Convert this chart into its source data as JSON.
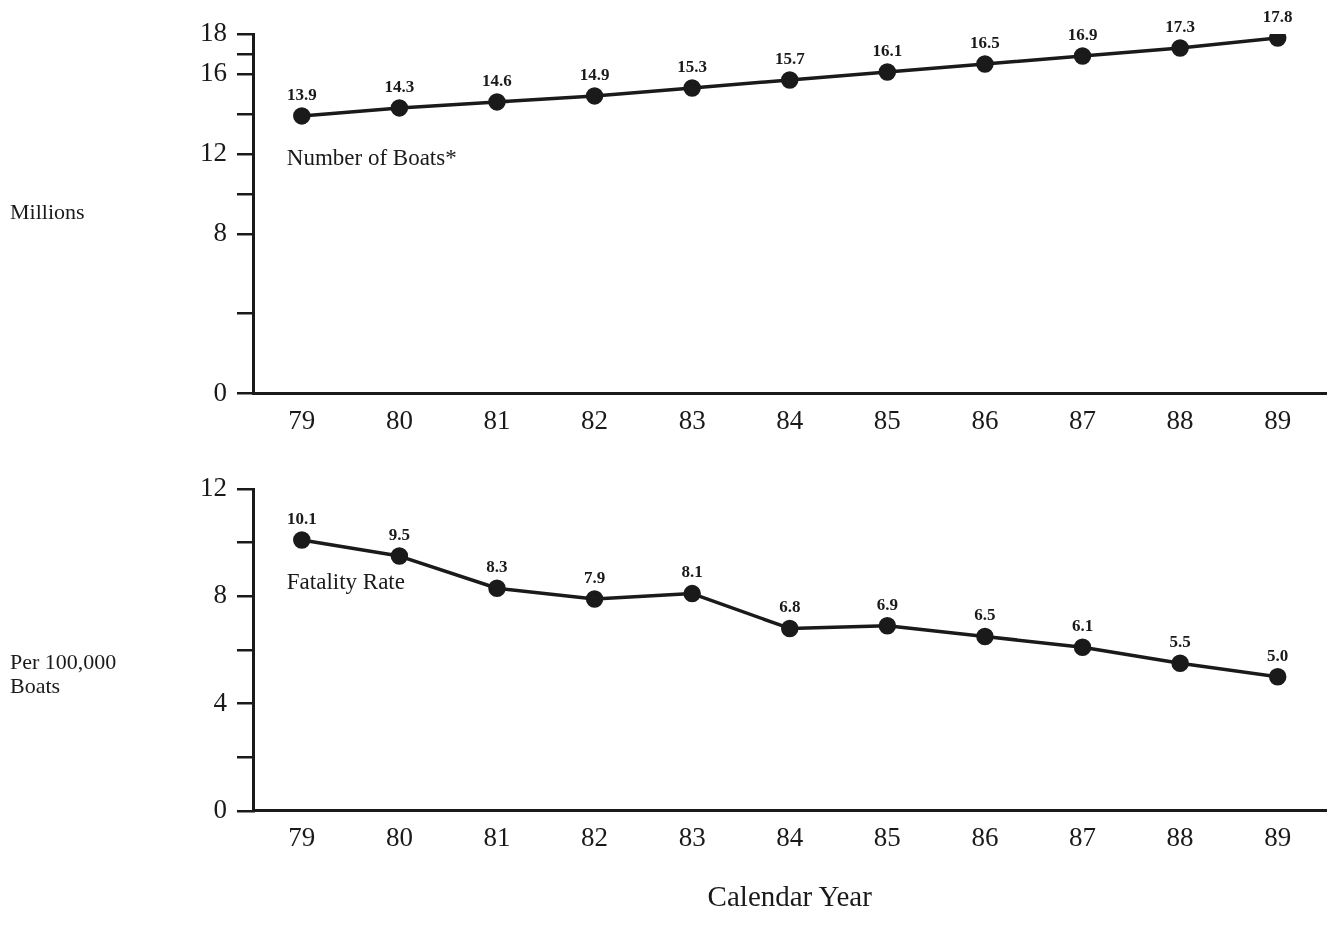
{
  "chart_data": [
    {
      "type": "line",
      "ylabel": "Millions",
      "categories": [
        "79",
        "80",
        "81",
        "82",
        "83",
        "84",
        "85",
        "86",
        "87",
        "88",
        "89"
      ],
      "series": [
        {
          "name": "Number of Boats*",
          "color": "#1a1a1a",
          "values": [
            13.9,
            14.3,
            14.6,
            14.9,
            15.3,
            15.7,
            16.1,
            16.5,
            16.9,
            17.3,
            17.8
          ]
        }
      ],
      "ylim": [
        0,
        18
      ],
      "yticks": [
        0,
        {
          "value": 4,
          "label": null
        },
        8,
        {
          "value": 10,
          "label": null
        },
        12,
        {
          "value": 14,
          "label": null
        },
        16,
        {
          "value": 17,
          "label": null
        },
        18
      ],
      "data_labels": true,
      "marker": "circle",
      "grid": false
    },
    {
      "type": "line",
      "ylabel": "Per 100,000 Boats",
      "xlabel": "Calendar Year",
      "categories": [
        "79",
        "80",
        "81",
        "82",
        "83",
        "84",
        "85",
        "86",
        "87",
        "88",
        "89"
      ],
      "series": [
        {
          "name": "Fatality Rate",
          "color": "#1a1a1a",
          "values": [
            10.1,
            9.5,
            8.3,
            7.9,
            8.1,
            6.8,
            6.9,
            6.5,
            6.1,
            5.5,
            5.0
          ],
          "value_labels": [
            "10.1",
            "9.5",
            "8.3",
            "7.9",
            "8.1",
            "6.8",
            "6.9",
            "6.5",
            "6.1",
            "5.5",
            "5.0"
          ]
        }
      ],
      "ylim": [
        0,
        12
      ],
      "yticks": [
        0,
        {
          "value": 2,
          "label": null
        },
        4,
        {
          "value": 6,
          "label": null
        },
        8,
        {
          "value": 10,
          "label": null
        },
        12
      ],
      "marker": "circle",
      "grid": false
    }
  ]
}
